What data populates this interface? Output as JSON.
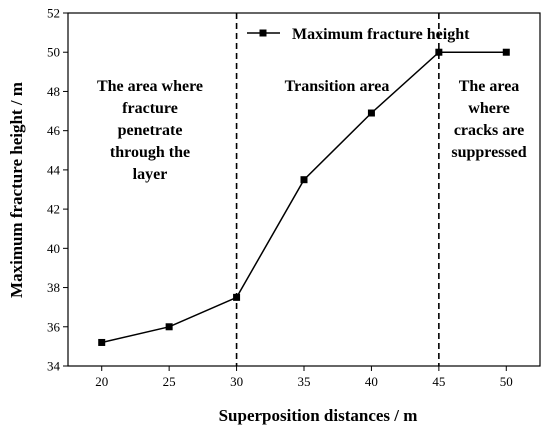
{
  "chart_data": {
    "type": "line",
    "xlabel": "Superposition distances / m",
    "ylabel": "Maximum fracture height / m",
    "xlim": [
      17.5,
      52.5
    ],
    "ylim": [
      34,
      52
    ],
    "xticks": [
      20,
      25,
      30,
      35,
      40,
      45,
      50
    ],
    "yticks": [
      34,
      36,
      38,
      40,
      42,
      44,
      46,
      48,
      50,
      52
    ],
    "grid": false,
    "legend_position": "top-right",
    "series": [
      {
        "name": "Maximum fracture height",
        "color": "#000000",
        "marker": "square",
        "x": [
          20,
          25,
          30,
          35,
          40,
          45,
          50
        ],
        "y": [
          35.2,
          36.0,
          37.5,
          43.5,
          46.9,
          50.0,
          50.0
        ]
      }
    ],
    "vlines": [
      30,
      45
    ],
    "annotations": [
      {
        "lines": [
          "The area where",
          "fracture",
          "penetrate",
          "through the",
          "layer"
        ]
      },
      {
        "lines": [
          "Transition  area"
        ]
      },
      {
        "lines": [
          "The area",
          "where",
          "cracks are",
          "suppressed"
        ]
      }
    ]
  }
}
